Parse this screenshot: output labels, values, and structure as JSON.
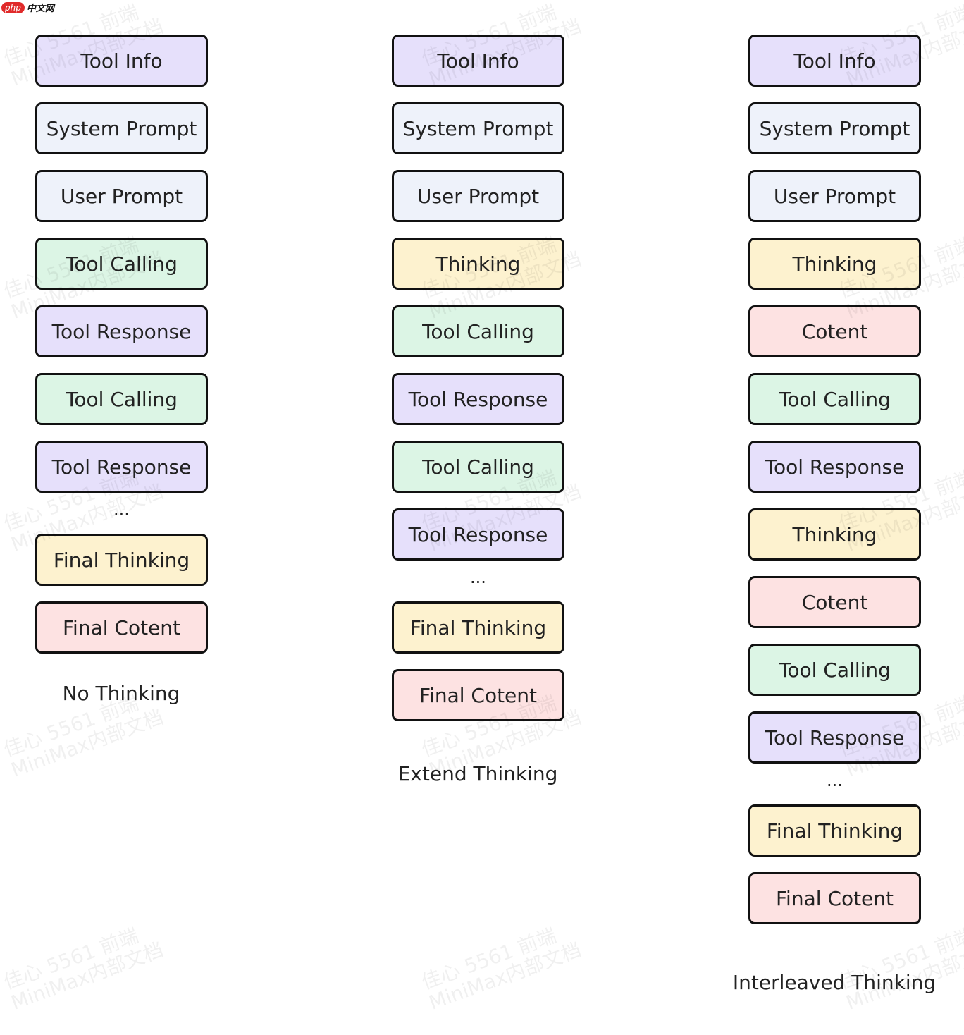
{
  "logo": {
    "php": "php",
    "cn": "中文网"
  },
  "watermark": "佳心 5561 前端\nMiniMax内部文档",
  "colors": {
    "tool_info": "#e6e0fb",
    "prompt": "#eef2fa",
    "tool_calling": "#dcf5e5",
    "tool_response": "#e6e0fb",
    "thinking": "#fdf2cf",
    "content": "#fde2e2"
  },
  "columns": [
    {
      "title": "No Thinking",
      "items": [
        {
          "text": "Tool Info",
          "kind": "tool_info"
        },
        {
          "text": "System Prompt",
          "kind": "prompt"
        },
        {
          "text": "User Prompt",
          "kind": "prompt"
        },
        {
          "text": "Tool Calling",
          "kind": "tool_calling"
        },
        {
          "text": "Tool Response",
          "kind": "tool_response"
        },
        {
          "text": "Tool Calling",
          "kind": "tool_calling"
        },
        {
          "text": "Tool Response",
          "kind": "tool_response"
        },
        {
          "text": "...",
          "kind": "ellipsis"
        },
        {
          "text": "Final Thinking",
          "kind": "thinking"
        },
        {
          "text": "Final Cotent",
          "kind": "content"
        }
      ]
    },
    {
      "title": "Extend Thinking",
      "items": [
        {
          "text": "Tool Info",
          "kind": "tool_info"
        },
        {
          "text": "System Prompt",
          "kind": "prompt"
        },
        {
          "text": "User Prompt",
          "kind": "prompt"
        },
        {
          "text": "Thinking",
          "kind": "thinking"
        },
        {
          "text": "Tool Calling",
          "kind": "tool_calling"
        },
        {
          "text": "Tool Response",
          "kind": "tool_response"
        },
        {
          "text": "Tool Calling",
          "kind": "tool_calling"
        },
        {
          "text": "Tool Response",
          "kind": "tool_response"
        },
        {
          "text": "...",
          "kind": "ellipsis"
        },
        {
          "text": "Final Thinking",
          "kind": "thinking"
        },
        {
          "text": "Final Cotent",
          "kind": "content"
        }
      ]
    },
    {
      "title": "Interleaved Thinking",
      "items": [
        {
          "text": "Tool Info",
          "kind": "tool_info"
        },
        {
          "text": "System Prompt",
          "kind": "prompt"
        },
        {
          "text": "User Prompt",
          "kind": "prompt"
        },
        {
          "text": "Thinking",
          "kind": "thinking"
        },
        {
          "text": "Cotent",
          "kind": "content"
        },
        {
          "text": "Tool Calling",
          "kind": "tool_calling"
        },
        {
          "text": "Tool Response",
          "kind": "tool_response"
        },
        {
          "text": "Thinking",
          "kind": "thinking"
        },
        {
          "text": "Cotent",
          "kind": "content"
        },
        {
          "text": "Tool Calling",
          "kind": "tool_calling"
        },
        {
          "text": "Tool Response",
          "kind": "tool_response"
        },
        {
          "text": "...",
          "kind": "ellipsis"
        },
        {
          "text": "Final Thinking",
          "kind": "thinking"
        },
        {
          "text": "Final Cotent",
          "kind": "content"
        }
      ]
    }
  ]
}
